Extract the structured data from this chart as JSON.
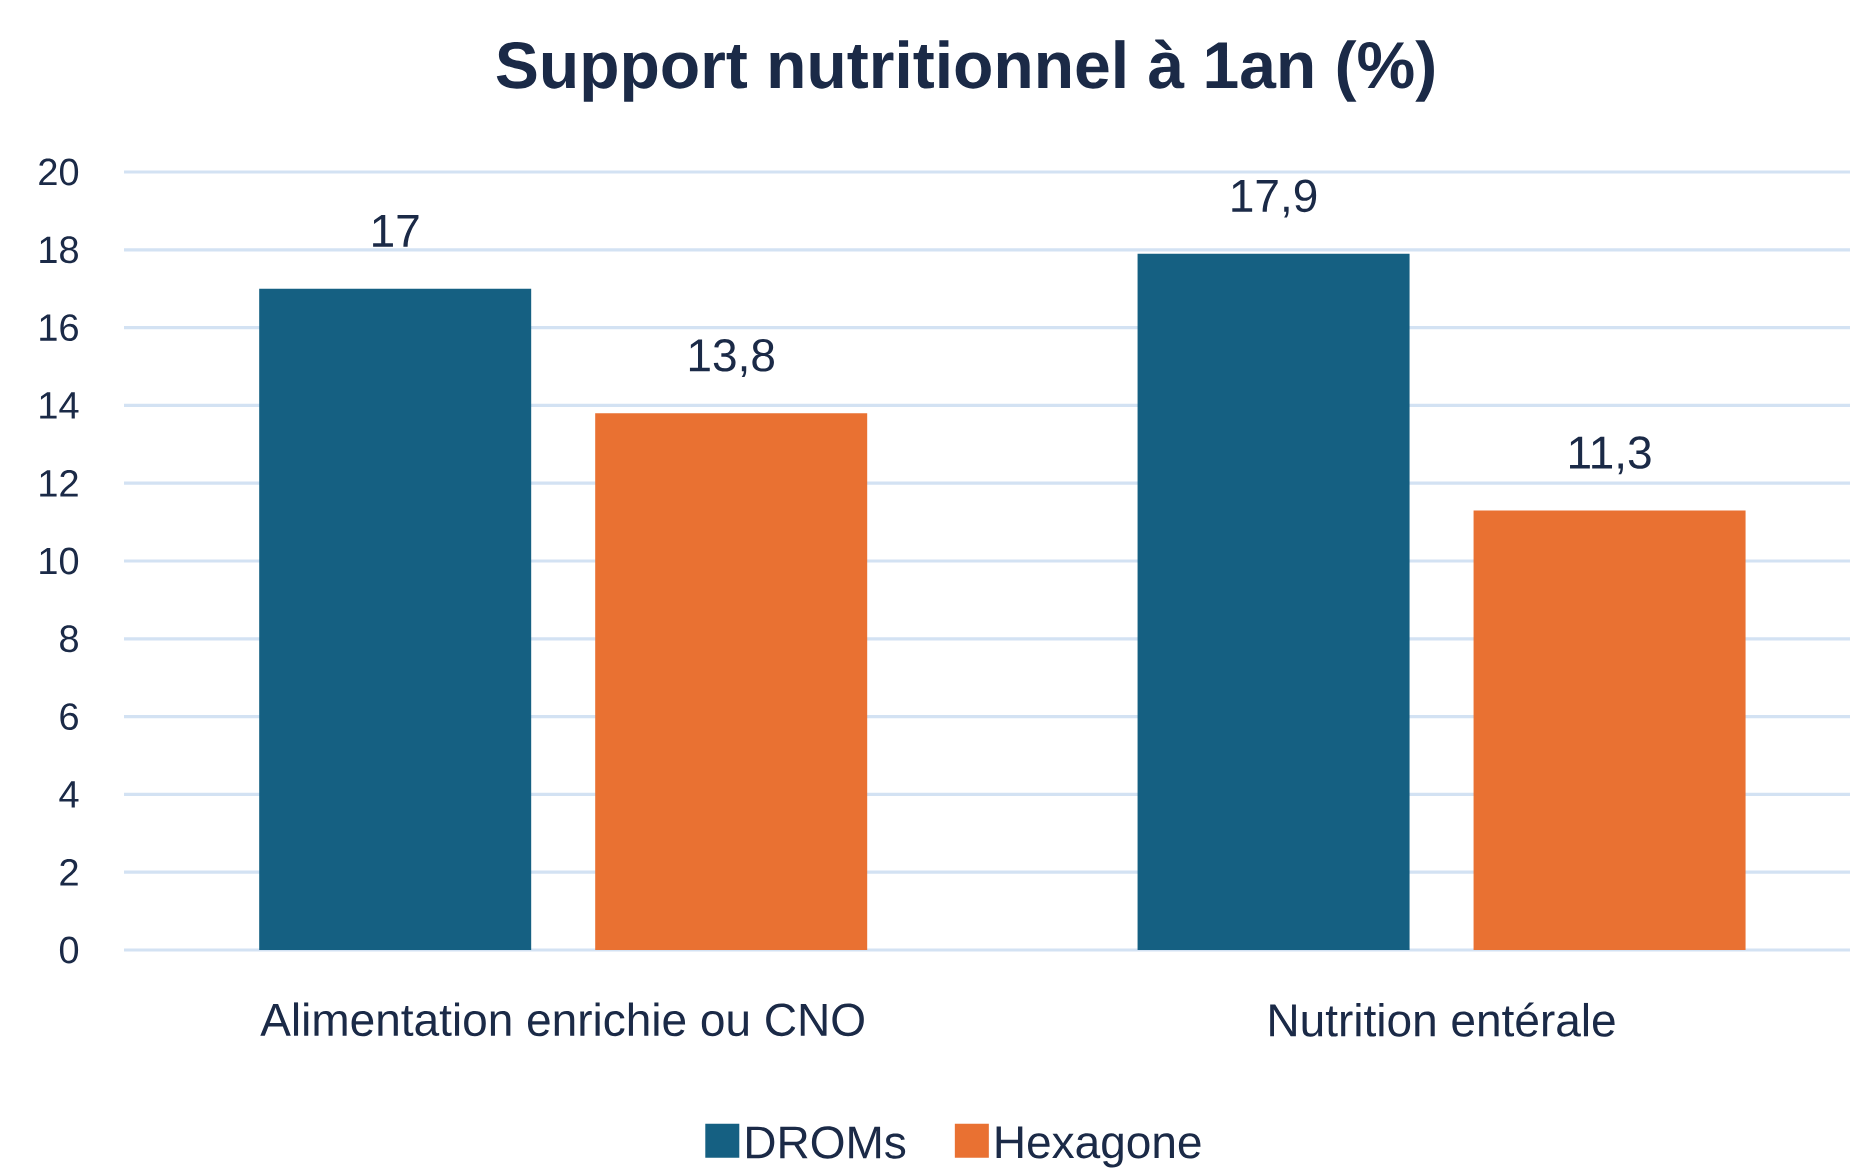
{
  "chart_data": {
    "type": "bar",
    "title": "Support nutritionnel à 1an (%)",
    "categories": [
      "Alimentation enrichie ou CNO",
      "Nutrition entérale"
    ],
    "series": [
      {
        "name": "DROMs",
        "color": "#156082",
        "values": [
          17,
          17.9
        ],
        "value_labels": [
          "17",
          "17,9"
        ]
      },
      {
        "name": "Hexagone",
        "color": "#e97132",
        "values": [
          13.8,
          11.3
        ],
        "value_labels": [
          "13,8",
          "11,3"
        ]
      }
    ],
    "ylim": [
      0,
      20
    ],
    "yticks": [
      0,
      2,
      4,
      6,
      8,
      10,
      12,
      14,
      16,
      18,
      20
    ],
    "grid": "y",
    "legend": "bottom"
  }
}
